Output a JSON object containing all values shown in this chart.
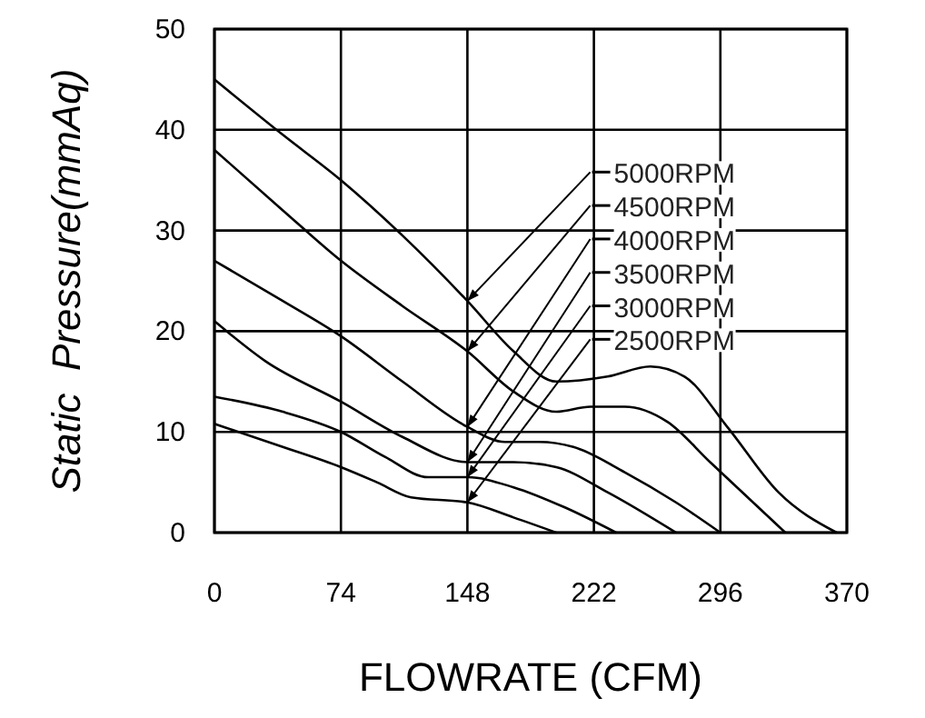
{
  "chart_data": {
    "type": "line",
    "xlabel": "FLOWRATE (CFM)",
    "ylabel": "Static  Pressure(mmAq)",
    "xlim": [
      0,
      370
    ],
    "ylim": [
      0,
      50
    ],
    "xticks": [
      0,
      74,
      148,
      222,
      296,
      370
    ],
    "yticks": [
      0,
      10,
      20,
      30,
      40,
      50
    ],
    "grid": true,
    "legend": "right",
    "marker": "none",
    "line_style": "solid",
    "series": [
      {
        "name": "5000RPM",
        "color": "#000000",
        "x": [
          0,
          40,
          74,
          110,
          148,
          175,
          200,
          230,
          255,
          275,
          300,
          330,
          364
        ],
        "values": [
          45,
          39.5,
          35,
          29.5,
          23,
          18,
          15,
          15.5,
          16.5,
          15.5,
          10.5,
          4,
          0
        ]
      },
      {
        "name": "4500RPM",
        "color": "#000000",
        "x": [
          0,
          40,
          74,
          110,
          148,
          175,
          200,
          220,
          240,
          265,
          290,
          334
        ],
        "values": [
          38,
          32,
          27,
          22.5,
          18,
          14,
          12,
          12.5,
          12.5,
          11,
          7,
          0
        ]
      },
      {
        "name": "4000RPM",
        "color": "#000000",
        "x": [
          0,
          40,
          74,
          110,
          148,
          170,
          190,
          210,
          240,
          270,
          296
        ],
        "values": [
          27,
          23,
          19.5,
          15,
          10.5,
          9,
          9,
          8.5,
          6,
          3,
          0
        ]
      },
      {
        "name": "3500RPM",
        "color": "#000000",
        "x": [
          0,
          30,
          74,
          110,
          148,
          175,
          200,
          230,
          270
        ],
        "values": [
          21,
          17,
          13,
          9.5,
          7,
          7,
          6.5,
          4,
          0
        ]
      },
      {
        "name": "3000RPM",
        "color": "#000000",
        "x": [
          0,
          40,
          74,
          100,
          125,
          148,
          175,
          205,
          235
        ],
        "values": [
          13.5,
          12,
          10,
          7.5,
          5.5,
          5.5,
          4.5,
          2.5,
          0
        ]
      },
      {
        "name": "2500RPM",
        "color": "#000000",
        "x": [
          0,
          40,
          74,
          95,
          115,
          148,
          175,
          200
        ],
        "values": [
          10.8,
          8.5,
          6.5,
          5,
          3.5,
          3,
          1.5,
          0
        ]
      }
    ]
  }
}
